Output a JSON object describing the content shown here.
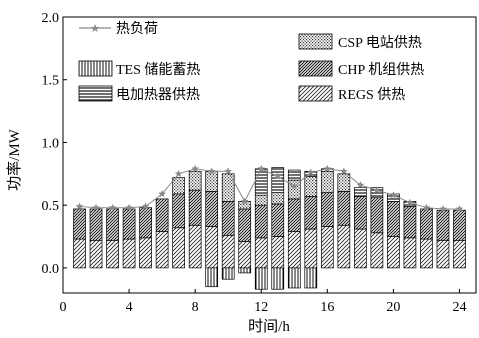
{
  "chart_data": {
    "type": "bar",
    "xlabel": "时间/h",
    "ylabel": "功率/MW",
    "xlim": [
      0,
      25
    ],
    "ylim": [
      -0.2,
      2.0
    ],
    "xticks": [
      "0",
      "4",
      "8",
      "12",
      "16",
      "20",
      "24"
    ],
    "yticks": [
      "0.0",
      "0.5",
      "1.0",
      "1.5",
      "2.0"
    ],
    "hours": [
      1,
      2,
      3,
      4,
      5,
      6,
      7,
      8,
      9,
      10,
      11,
      12,
      13,
      14,
      15,
      16,
      17,
      18,
      19,
      20,
      21,
      22,
      23,
      24
    ],
    "series": [
      {
        "name": "REGS 供热",
        "key": "regs",
        "values": [
          0.23,
          0.22,
          0.22,
          0.23,
          0.24,
          0.29,
          0.32,
          0.34,
          0.33,
          0.26,
          0.21,
          0.24,
          0.25,
          0.29,
          0.31,
          0.33,
          0.34,
          0.31,
          0.28,
          0.25,
          0.24,
          0.23,
          0.22,
          0.22
        ]
      },
      {
        "name": "CHP 机组供热",
        "key": "chp",
        "values": [
          0.24,
          0.25,
          0.25,
          0.24,
          0.24,
          0.26,
          0.27,
          0.28,
          0.28,
          0.27,
          0.26,
          0.26,
          0.26,
          0.26,
          0.26,
          0.27,
          0.27,
          0.26,
          0.28,
          0.28,
          0.25,
          0.24,
          0.24,
          0.24
        ]
      },
      {
        "name": "CSP 电站供热",
        "key": "csp",
        "values": [
          0,
          0,
          0,
          0,
          0,
          0,
          0.13,
          0.15,
          0.16,
          0.22,
          0.06,
          0.08,
          0.09,
          0.15,
          0.16,
          0.17,
          0.14,
          0.0,
          0.0,
          0.0,
          0,
          0,
          0,
          0
        ]
      },
      {
        "name": "电加热器供热",
        "key": "eh",
        "values": [
          0,
          0,
          0,
          0,
          0,
          0,
          0,
          0,
          0,
          0,
          0,
          0.21,
          0.2,
          0.08,
          0.04,
          0.02,
          0,
          0.07,
          0.08,
          0.06,
          0.04,
          0,
          0,
          0
        ]
      },
      {
        "name": "TES 储能蓄热",
        "key": "tes",
        "values": [
          0,
          0,
          0,
          0,
          0,
          0,
          0,
          0,
          -0.15,
          -0.09,
          -0.04,
          -0.17,
          -0.17,
          -0.16,
          -0.16,
          0,
          0,
          0,
          0,
          0,
          0,
          0,
          0,
          0
        ]
      }
    ],
    "heat_load": {
      "name": "热负荷",
      "values": [
        0.49,
        0.48,
        0.48,
        0.48,
        0.49,
        0.59,
        0.75,
        0.79,
        0.77,
        0.77,
        0.53,
        0.79,
        0.73,
        0.65,
        0.76,
        0.79,
        0.77,
        0.66,
        0.62,
        0.58,
        0.52,
        0.48,
        0.47,
        0.47
      ]
    },
    "grid": false,
    "legend_position": "top"
  },
  "colors": {
    "ink": "#1a1a1a",
    "line": "#8a8a8a",
    "marker": "#8a8a8a"
  }
}
